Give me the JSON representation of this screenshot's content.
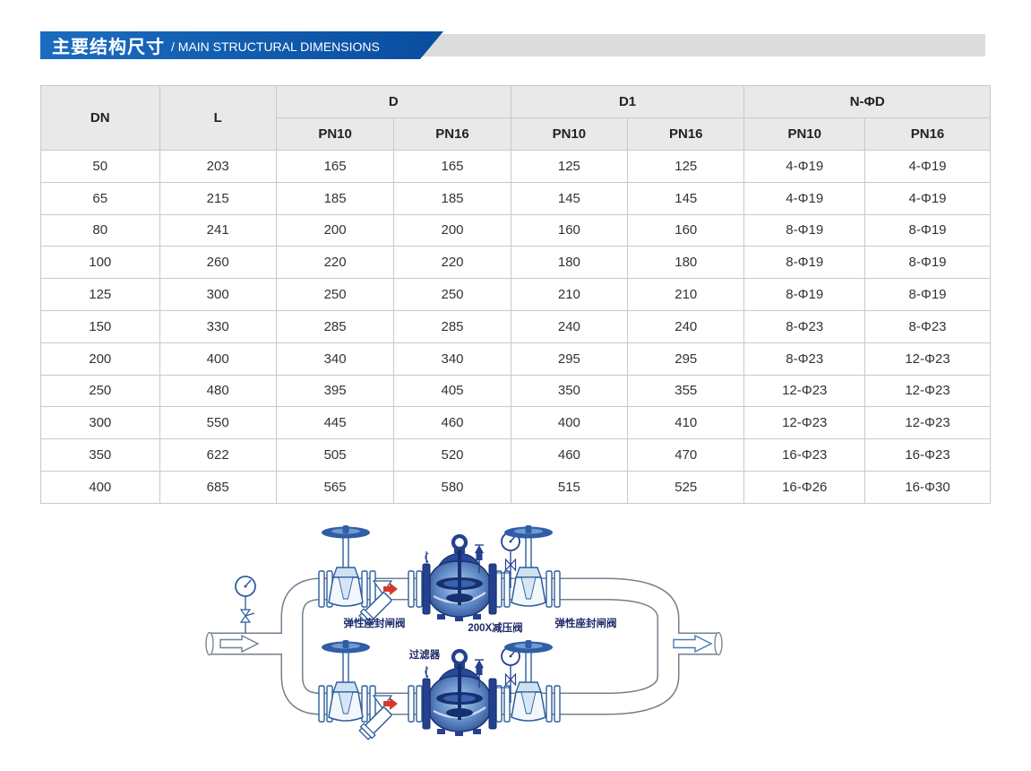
{
  "banner": {
    "title_zh": "主要结构尺寸",
    "title_en": "/ MAIN STRUCTURAL DIMENSIONS",
    "blue": "#0f5cab",
    "gray": "#dcdcdc"
  },
  "table": {
    "groups": {
      "dn": "DN",
      "l": "L",
      "d": "D",
      "d1": "D1",
      "n_phi_d": "N-ΦD",
      "pn10": "PN10",
      "pn16": "PN16"
    },
    "rows": [
      [
        "50",
        "203",
        "165",
        "165",
        "125",
        "125",
        "4-Φ19",
        "4-Φ19"
      ],
      [
        "65",
        "215",
        "185",
        "185",
        "145",
        "145",
        "4-Φ19",
        "4-Φ19"
      ],
      [
        "80",
        "241",
        "200",
        "200",
        "160",
        "160",
        "8-Φ19",
        "8-Φ19"
      ],
      [
        "100",
        "260",
        "220",
        "220",
        "180",
        "180",
        "8-Φ19",
        "8-Φ19"
      ],
      [
        "125",
        "300",
        "250",
        "250",
        "210",
        "210",
        "8-Φ19",
        "8-Φ19"
      ],
      [
        "150",
        "330",
        "285",
        "285",
        "240",
        "240",
        "8-Φ23",
        "8-Φ23"
      ],
      [
        "200",
        "400",
        "340",
        "340",
        "295",
        "295",
        "8-Φ23",
        "12-Φ23"
      ],
      [
        "250",
        "480",
        "395",
        "405",
        "350",
        "355",
        "12-Φ23",
        "12-Φ23"
      ],
      [
        "300",
        "550",
        "445",
        "460",
        "400",
        "410",
        "12-Φ23",
        "12-Φ23"
      ],
      [
        "350",
        "622",
        "505",
        "520",
        "460",
        "470",
        "16-Φ23",
        "16-Φ23"
      ],
      [
        "400",
        "685",
        "565",
        "580",
        "515",
        "525",
        "16-Φ26",
        "16-Φ30"
      ]
    ]
  },
  "diagram": {
    "labels": {
      "gate_valve_left": "弹性座封闸阀",
      "reducing_valve": "200X减压阀",
      "gate_valve_right": "弹性座封闸阀",
      "strainer": "过滤器"
    },
    "colors": {
      "pipe_outline": "#70808f",
      "component_blue": "#2c5e9e",
      "valve_dark": "#24418f",
      "arrow_red": "#d6392c"
    }
  }
}
